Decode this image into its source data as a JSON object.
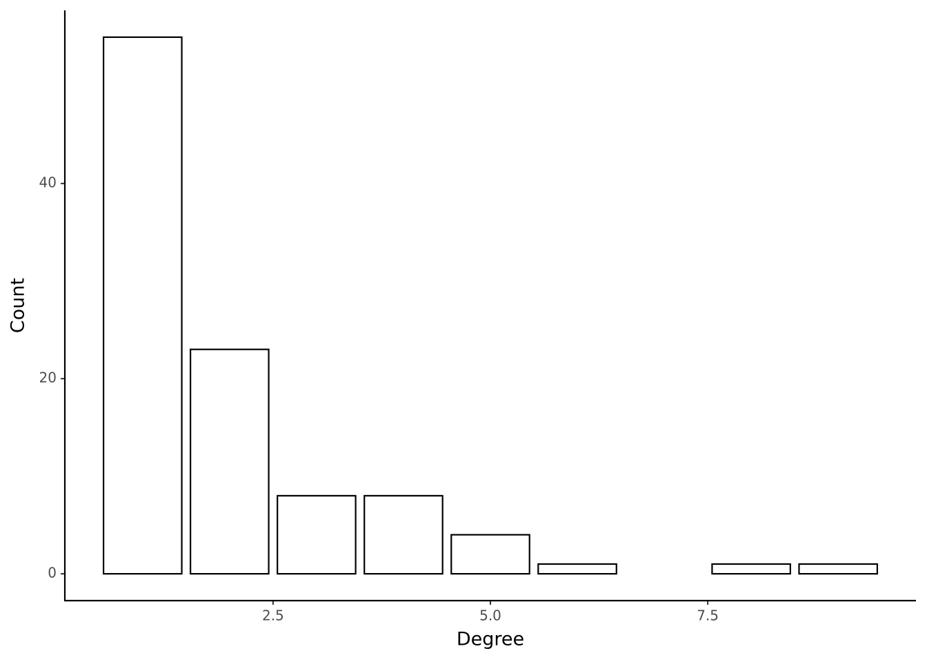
{
  "chart_data": {
    "type": "bar",
    "x": [
      1,
      2,
      3,
      4,
      5,
      6,
      8,
      9
    ],
    "values": [
      55,
      23,
      8,
      8,
      4,
      1,
      1,
      1
    ],
    "color": "#ffffff",
    "edgecolor": "#000000",
    "xlabel": "Degree",
    "ylabel": "Count",
    "xlim": [
      0.105,
      9.895
    ],
    "ylim": [
      -2.75,
      57.75
    ],
    "xticks": [
      2.5,
      {
        "value": 5,
        "label": "5.0"
      },
      7.5
    ],
    "yticks": [
      0,
      20,
      40
    ],
    "grid": false
  }
}
